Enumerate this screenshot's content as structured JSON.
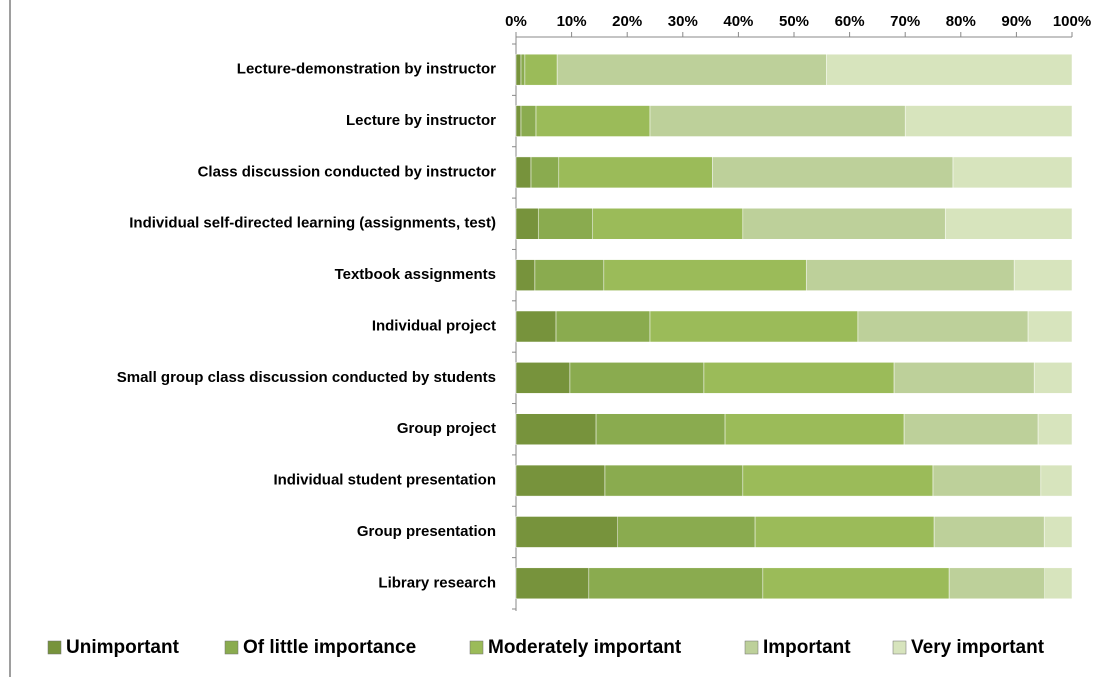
{
  "chart_data": {
    "type": "stacked_barh",
    "categories": [
      "Lecture-demonstration by instructor",
      "Lecture by instructor",
      "Class discussion conducted by instructor",
      "Individual self-directed learning (assignments, test)",
      "Textbook assignments",
      "Individual project",
      "Small group class discussion conducted by students",
      "Group project",
      "Individual student presentation",
      "Group presentation",
      "Library research"
    ],
    "series": [
      {
        "name": "Unimportant",
        "color": "#77933c",
        "values": [
          0.9,
          0.9,
          2.7,
          4.0,
          3.4,
          7.2,
          9.7,
          14.4,
          16.0,
          18.3,
          13.1
        ]
      },
      {
        "name": "Of little importance",
        "color": "#8aab4f",
        "values": [
          0.7,
          2.7,
          5.0,
          9.8,
          12.4,
          16.9,
          24.1,
          23.2,
          24.8,
          24.7,
          31.3
        ]
      },
      {
        "name": "Moderately important",
        "color": "#9bbb59",
        "values": [
          5.8,
          20.5,
          27.6,
          27.0,
          36.4,
          37.4,
          34.2,
          32.2,
          34.2,
          32.2,
          33.5
        ]
      },
      {
        "name": "Important",
        "color": "#bdd09a",
        "values": [
          48.4,
          45.9,
          43.3,
          36.4,
          37.4,
          30.6,
          25.2,
          24.1,
          19.4,
          19.8,
          17.2
        ]
      },
      {
        "name": "Very important",
        "color": "#d7e4bd",
        "values": [
          44.2,
          30.0,
          21.4,
          22.8,
          10.4,
          7.9,
          6.8,
          6.1,
          5.6,
          5.0,
          4.9
        ]
      }
    ],
    "xlim": [
      0,
      100
    ],
    "xticks": [
      {
        "value": 0,
        "label": "0%"
      },
      {
        "value": 10,
        "label": "10%"
      },
      {
        "value": 20,
        "label": "20%"
      },
      {
        "value": 30,
        "label": "30%"
      },
      {
        "value": 40,
        "label": "40%"
      },
      {
        "value": 50,
        "label": "50%"
      },
      {
        "value": 60,
        "label": "60%"
      },
      {
        "value": 70,
        "label": "70%"
      },
      {
        "value": 80,
        "label": "80%"
      },
      {
        "value": 90,
        "label": "90%"
      },
      {
        "value": 100,
        "label": "100%"
      }
    ],
    "legend": "bottom"
  }
}
